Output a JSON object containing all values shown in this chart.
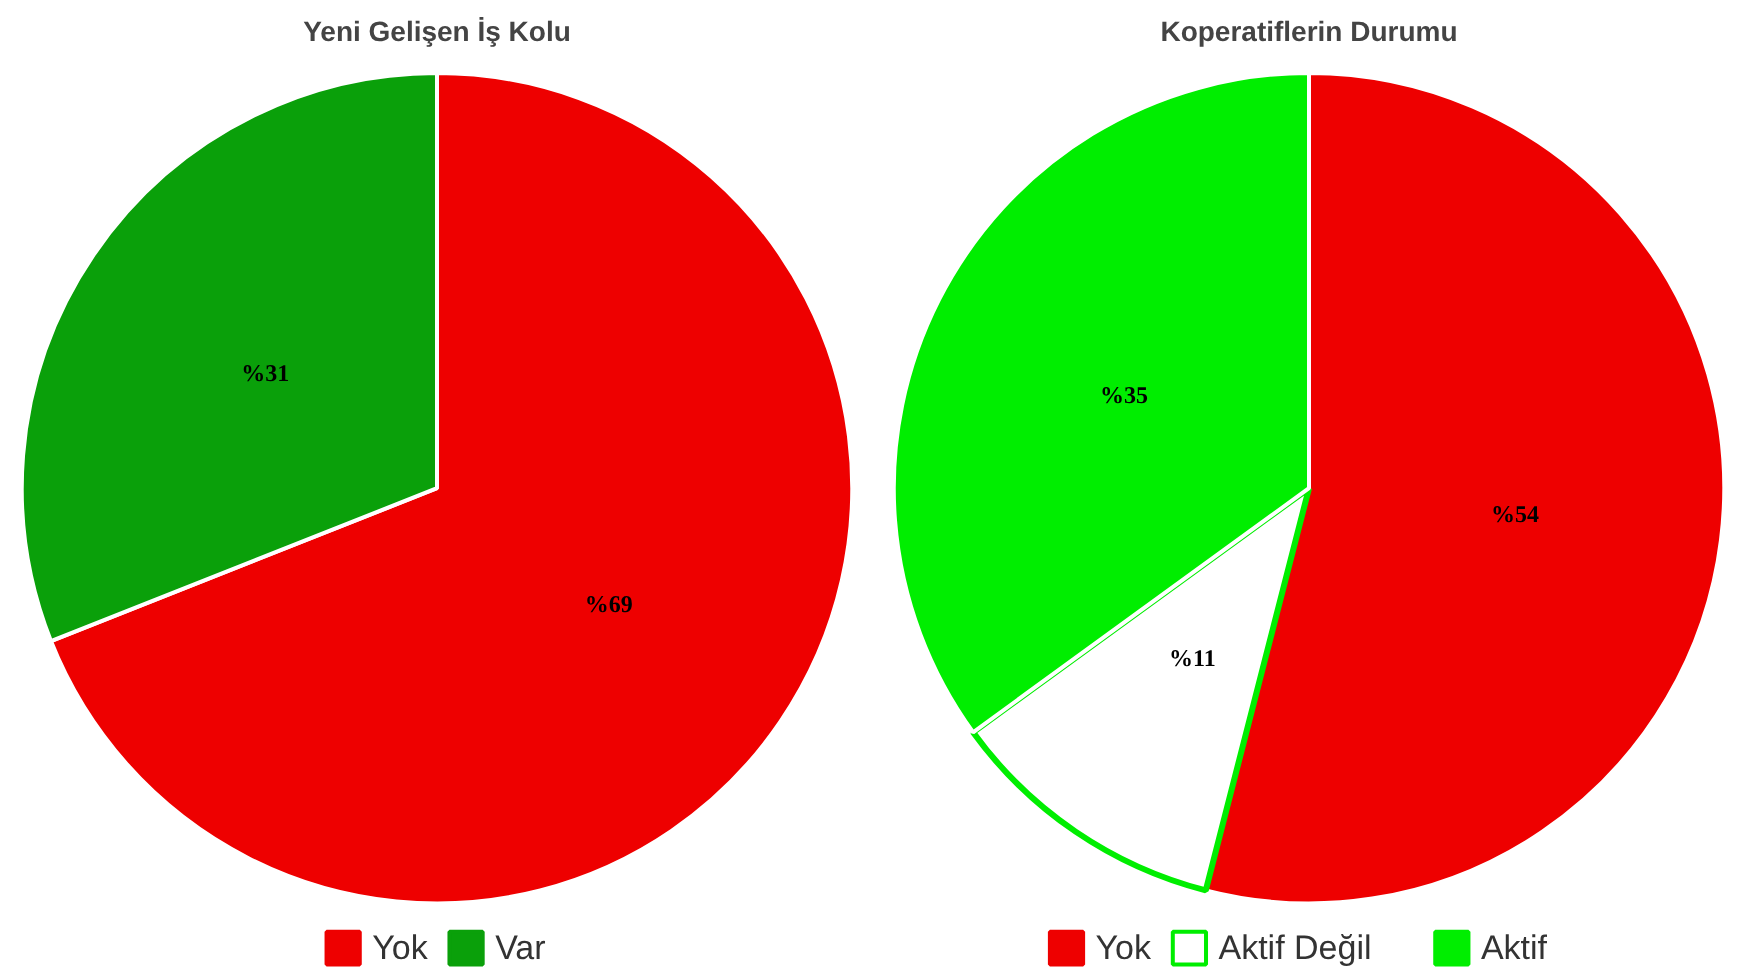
{
  "chart_data": [
    {
      "type": "pie",
      "title": "Yeni Gelişen İş Kolu",
      "categories": [
        "Yok",
        "Var"
      ],
      "values": [
        69,
        31
      ],
      "colors": [
        "#ee0000",
        "#0aa00a"
      ],
      "value_labels": [
        "%69",
        "%31"
      ],
      "legend": "bottom"
    },
    {
      "type": "pie",
      "title": "Koperatiflerin Durumu",
      "categories": [
        "Yok",
        "Aktif Değil",
        "Aktif"
      ],
      "values": [
        54,
        11,
        35
      ],
      "colors": [
        "#ee0000",
        "#ffffff",
        "#00ee00"
      ],
      "value_labels": [
        "%54",
        "%11",
        "%35"
      ],
      "legend": "bottom"
    }
  ]
}
